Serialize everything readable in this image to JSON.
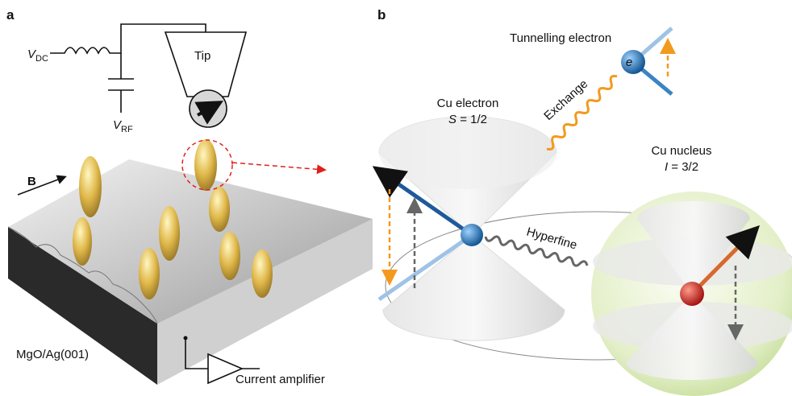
{
  "panel_a": {
    "label": "a",
    "circuit": {
      "vdc": {
        "symbol": "V",
        "sub": "DC"
      },
      "vrf": {
        "symbol": "V",
        "sub": "RF"
      },
      "tip": "Tip",
      "amplifier": "Current amplifier"
    },
    "field": "B",
    "sample": "MgO/Ag(001)"
  },
  "panel_b": {
    "label": "b",
    "tunnelling": {
      "title": "Tunnelling electron",
      "symbol": "e"
    },
    "exchange": "Exchange",
    "cu_electron": {
      "title": "Cu electron",
      "spin_symbol": "S",
      "spin_value": "= 1/2"
    },
    "hyperfine": "Hyperfine",
    "cu_nucleus": {
      "title": "Cu nucleus",
      "spin_symbol": "I",
      "spin_value": "= 3/2"
    }
  }
}
